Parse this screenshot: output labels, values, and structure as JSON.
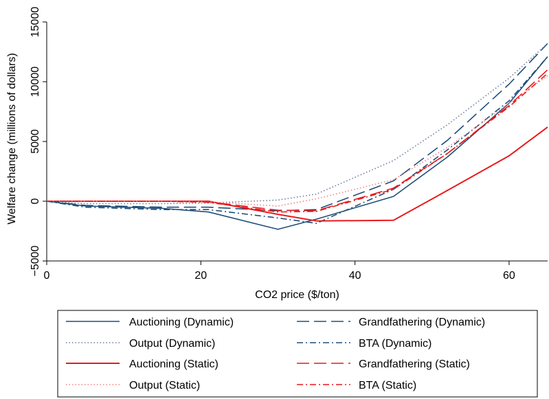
{
  "chart_data": {
    "type": "line",
    "title": "",
    "xlabel": "CO2 price ($/ton)",
    "ylabel": "Welfare change (millions of dollars)",
    "xlim": [
      0,
      65
    ],
    "ylim": [
      -5000,
      15000
    ],
    "xticks": [
      0,
      20,
      40,
      60
    ],
    "yticks": [
      -5000,
      0,
      5000,
      10000,
      15000
    ],
    "xtick_labels": [
      "0",
      "20",
      "40",
      "60"
    ],
    "ytick_labels": [
      "−5000",
      "0",
      "5000",
      "10000",
      "15000"
    ],
    "grid": false,
    "legend_position": "bottom",
    "series": [
      {
        "name": "Auctioning (Dynamic)",
        "color": "#1f4e79",
        "dash": "solid",
        "x": [
          0,
          5,
          15,
          21,
          30,
          35,
          45,
          52,
          60,
          65
        ],
        "y": [
          0,
          -400,
          -600,
          -900,
          -2350,
          -1500,
          400,
          3700,
          8200,
          12100
        ]
      },
      {
        "name": "Grandfathering (Dynamic)",
        "color": "#1f4e79",
        "dash": "longdash",
        "x": [
          0,
          5,
          15,
          21,
          30,
          35,
          45,
          52,
          60,
          65
        ],
        "y": [
          0,
          -350,
          -500,
          -500,
          -800,
          -700,
          1700,
          5100,
          9800,
          13200
        ]
      },
      {
        "name": "Output (Dynamic)",
        "color": "#6b7a99",
        "dash": "dot",
        "x": [
          0,
          5,
          15,
          21,
          30,
          35,
          45,
          52,
          60,
          65
        ],
        "y": [
          0,
          -200,
          -200,
          -150,
          100,
          600,
          3400,
          6400,
          10300,
          13200
        ]
      },
      {
        "name": "BTA (Dynamic)",
        "color": "#1f4e79",
        "dash": "dashdot",
        "x": [
          0,
          5,
          15,
          21,
          30,
          35,
          45,
          52,
          60,
          65
        ],
        "y": [
          0,
          -500,
          -700,
          -700,
          -1400,
          -1850,
          1000,
          4300,
          8400,
          12100
        ]
      },
      {
        "name": "Auctioning (Static)",
        "color": "#e8191c",
        "dash": "solid",
        "x": [
          0,
          5,
          15,
          21,
          30,
          35,
          45,
          52,
          60,
          65
        ],
        "y": [
          0,
          0,
          0,
          0,
          -1100,
          -1650,
          -1600,
          900,
          3800,
          6200
        ]
      },
      {
        "name": "Grandfathering (Static)",
        "color": "#e8191c",
        "dash": "longdash",
        "x": [
          0,
          5,
          15,
          21,
          30,
          35,
          45,
          52,
          60,
          65
        ],
        "y": [
          0,
          0,
          0,
          -50,
          -750,
          -800,
          1100,
          4000,
          8000,
          11000
        ]
      },
      {
        "name": "Output (Static)",
        "color": "#f08080",
        "dash": "dot",
        "x": [
          0,
          5,
          15,
          21,
          30,
          35,
          45,
          52,
          60,
          65
        ],
        "y": [
          0,
          0,
          0,
          -50,
          -400,
          200,
          1800,
          4500,
          8200,
          10500
        ]
      },
      {
        "name": "BTA (Static)",
        "color": "#e8191c",
        "dash": "dashdot",
        "x": [
          0,
          5,
          15,
          21,
          30,
          35,
          45,
          52,
          60,
          65
        ],
        "y": [
          0,
          0,
          0,
          -100,
          -900,
          -850,
          1000,
          4000,
          7900,
          10700
        ]
      }
    ]
  }
}
